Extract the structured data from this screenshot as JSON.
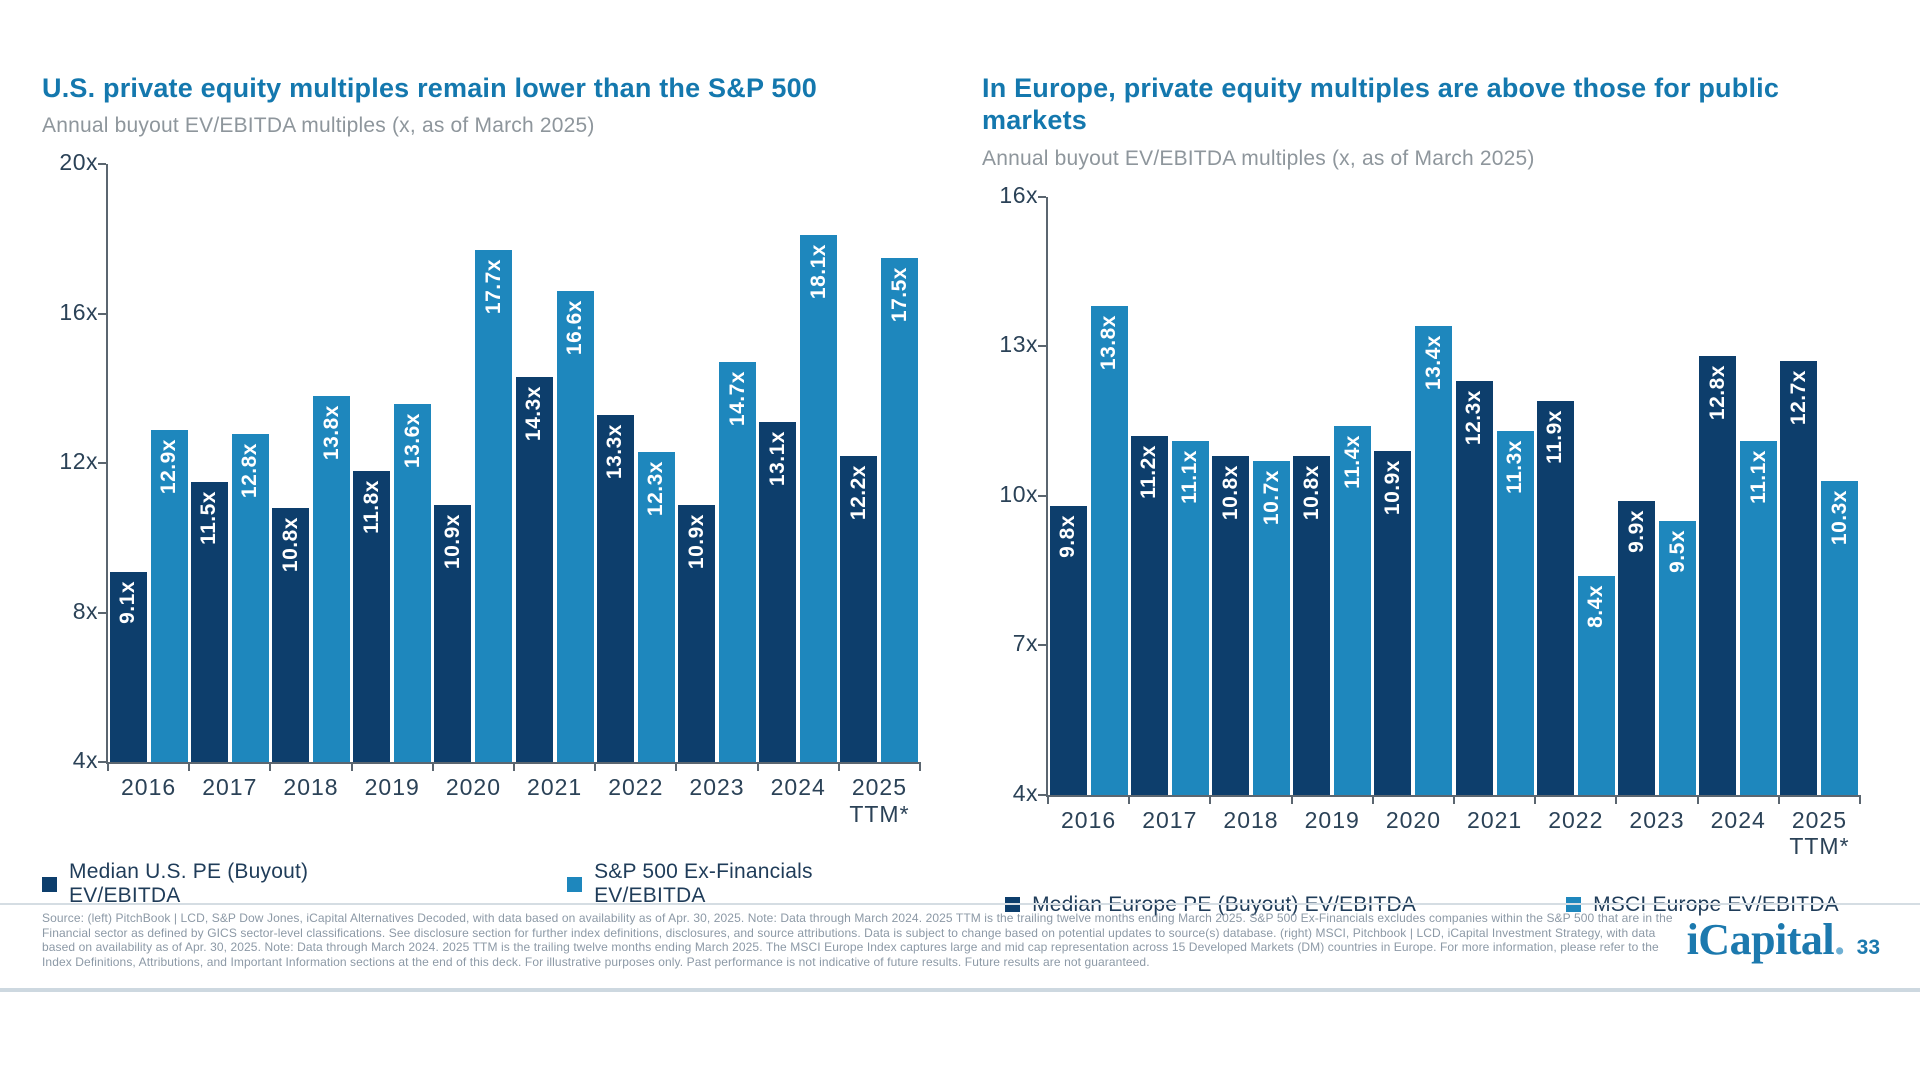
{
  "colors": {
    "title": "#1478AE",
    "dark": "#0D3E6C",
    "light": "#1E87BD",
    "logo": "#1C79AE"
  },
  "chart_data": [
    {
      "type": "bar",
      "title": "U.S. private equity multiples remain lower than the S&P 500",
      "subtitle": "Annual buyout EV/EBITDA multiples (x, as of March 2025)",
      "categories": [
        "2016",
        "2017",
        "2018",
        "2019",
        "2020",
        "2021",
        "2022",
        "2023",
        "2024",
        "2025\nTTM*"
      ],
      "series": [
        {
          "name": "Median U.S. PE (Buyout) EV/EBITDA",
          "color_key": "dark",
          "values": [
            9.1,
            11.5,
            10.8,
            11.8,
            10.9,
            14.3,
            13.3,
            10.9,
            13.1,
            12.2
          ]
        },
        {
          "name": "S&P 500 Ex-Financials EV/EBITDA",
          "color_key": "light",
          "values": [
            12.9,
            12.8,
            13.8,
            13.6,
            17.7,
            16.6,
            12.3,
            14.7,
            18.1,
            17.5
          ]
        }
      ],
      "ylim": [
        4,
        20
      ],
      "yticks": [
        4,
        8,
        12,
        16,
        20
      ],
      "tick_suffix": "x",
      "value_suffix": "x",
      "grid": false,
      "legend_position": "bottom"
    },
    {
      "type": "bar",
      "title": "In Europe, private equity multiples are above those for public markets",
      "subtitle": "Annual buyout EV/EBITDA multiples (x, as of March 2025)",
      "categories": [
        "2016",
        "2017",
        "2018",
        "2019",
        "2020",
        "2021",
        "2022",
        "2023",
        "2024",
        "2025\nTTM*"
      ],
      "series": [
        {
          "name": "Median Europe PE (Buyout) EV/EBITDA",
          "color_key": "dark",
          "values": [
            9.8,
            11.2,
            10.8,
            10.8,
            10.9,
            12.3,
            11.9,
            9.9,
            12.8,
            12.7
          ]
        },
        {
          "name": "MSCI Europe EV/EBITDA",
          "color_key": "light",
          "values": [
            13.8,
            11.1,
            10.7,
            11.4,
            13.4,
            11.3,
            8.4,
            9.5,
            11.1,
            10.3
          ]
        }
      ],
      "ylim": [
        4,
        16
      ],
      "yticks": [
        4,
        7,
        10,
        13,
        16
      ],
      "tick_suffix": "x",
      "value_suffix": "x",
      "grid": false,
      "legend_position": "bottom"
    }
  ],
  "footer": {
    "text": "Source: (left) PitchBook | LCD, S&P Dow Jones, iCapital Alternatives Decoded, with data based on availability as of Apr. 30, 2025. Note: Data through March 2024. 2025 TTM is the trailing twelve months ending March 2025. S&P 500 Ex-Financials excludes companies within the S&P 500 that are in the Financial sector as defined by GICS sector-level classifications. See disclosure section for further index definitions, disclosures, and source attributions. Data is subject to change based on potential updates to source(s) database. (right) MSCI, Pitchbook | LCD, iCapital Investment Strategy, with data based on availability as of Apr. 30, 2025. Note: Data through March 2024. 2025 TTM is the trailing twelve months ending March 2025. The MSCI Europe Index captures large and mid cap representation across 15 Developed Markets (DM) countries in Europe. For more information, please refer to the Index Definitions, Attributions, and Important Information sections at the end of this deck. For illustrative purposes only. Past performance is not indicative of future results. Future results are not guaranteed."
  },
  "branding": {
    "logo_text": "iCapital",
    "logo_dot": ".",
    "page_number": "33"
  }
}
